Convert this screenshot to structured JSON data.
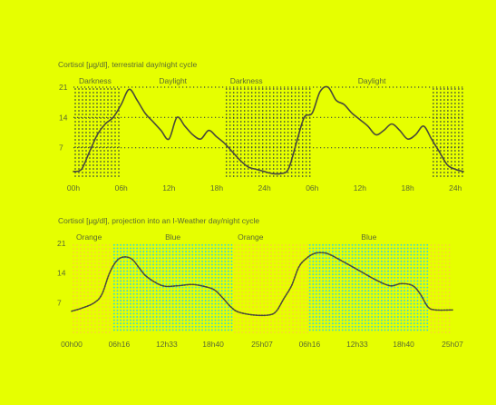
{
  "colors": {
    "background": "#e6ff00",
    "text": "#5a6a32",
    "line": "#4a4a3a",
    "dots_dark": "#3e4a3a",
    "dots_orange": "#ffcf3a",
    "dots_blue": "#3fd9d0"
  },
  "chart_data": [
    {
      "type": "line",
      "title": "Cortisol [µg/dl], terrestrial day/night cycle",
      "xlabel": "",
      "ylabel": "",
      "ylim": [
        0,
        21
      ],
      "xlim": [
        0,
        49
      ],
      "yticks": [
        7,
        14,
        21
      ],
      "xticks": [
        {
          "x": 0,
          "label": "00h"
        },
        {
          "x": 6,
          "label": "06h"
        },
        {
          "x": 12,
          "label": "12h"
        },
        {
          "x": 18,
          "label": "18h"
        },
        {
          "x": 24,
          "label": "24h"
        },
        {
          "x": 30,
          "label": "06h"
        },
        {
          "x": 36,
          "label": "12h"
        },
        {
          "x": 42,
          "label": "18h"
        },
        {
          "x": 48,
          "label": "24h"
        }
      ],
      "bands": [
        {
          "label": "Darkness",
          "start": 0,
          "end": 6,
          "style": "dark"
        },
        {
          "label": "Daylight",
          "start": 6,
          "end": 19,
          "style": "none"
        },
        {
          "label": "Darkness",
          "start": 19,
          "end": 30,
          "style": "dark"
        },
        {
          "label": "Daylight",
          "start": 30,
          "end": 45,
          "style": "none"
        },
        {
          "label": "",
          "start": 45,
          "end": 49,
          "style": "dark"
        }
      ],
      "grid": "horizontal dotted at y ticks",
      "series": [
        {
          "x": [
            0,
            1,
            2,
            3,
            4,
            5,
            6,
            7,
            8,
            9,
            10,
            11,
            12,
            13,
            14,
            15,
            16,
            17,
            18,
            19,
            20,
            21,
            22,
            23,
            24,
            25,
            26,
            27,
            28,
            29,
            30,
            31,
            32,
            33,
            34,
            35,
            36,
            37,
            38,
            39,
            40,
            41,
            42,
            43,
            44,
            45,
            46,
            47,
            48,
            49
          ],
          "y": [
            1.5,
            2,
            6,
            10,
            12.5,
            14,
            17,
            20.5,
            18,
            15,
            13,
            11,
            9,
            14,
            12,
            10,
            9,
            11,
            9.5,
            8,
            6,
            4,
            2.5,
            2,
            1.5,
            1,
            1,
            2,
            8,
            14,
            15,
            20,
            21,
            18,
            17,
            15,
            13.5,
            12,
            10,
            11,
            12.5,
            11,
            9,
            10,
            12,
            9,
            6,
            3,
            2,
            1.5
          ]
        }
      ]
    },
    {
      "type": "line",
      "title": "Cortisol [µg/dl], projection into an I-Weather day/night cycle",
      "xlabel": "",
      "ylabel": "",
      "ylim": [
        0,
        21
      ],
      "xlim": [
        0,
        50.233
      ],
      "yticks": [
        7,
        14,
        21
      ],
      "xticks": [
        {
          "x": 0,
          "label": "00h00"
        },
        {
          "x": 6.267,
          "label": "06h16"
        },
        {
          "x": 12.55,
          "label": "12h33"
        },
        {
          "x": 18.667,
          "label": "18h40"
        },
        {
          "x": 25.117,
          "label": "25h07"
        },
        {
          "x": 31.383,
          "label": "06h16"
        },
        {
          "x": 37.667,
          "label": "12h33"
        },
        {
          "x": 43.783,
          "label": "18h40"
        },
        {
          "x": 50.233,
          "label": "25h07"
        }
      ],
      "bands": [
        {
          "label": "Orange",
          "start": 0,
          "end": 5.4,
          "style": "orange"
        },
        {
          "label": "Blue",
          "start": 5.4,
          "end": 21.3,
          "style": "blue"
        },
        {
          "label": "Orange",
          "start": 21.3,
          "end": 31.2,
          "style": "orange"
        },
        {
          "label": "Blue",
          "start": 31.2,
          "end": 47.2,
          "style": "blue"
        },
        {
          "label": "",
          "start": 47.2,
          "end": 50.233,
          "style": "orange"
        }
      ],
      "grid": "none",
      "series": [
        {
          "x": [
            0,
            1.5,
            3,
            4,
            5,
            6,
            7,
            8,
            9,
            10,
            12,
            14,
            16,
            18,
            19,
            20,
            21,
            22,
            24,
            26,
            27,
            28,
            29,
            30,
            31,
            32,
            33,
            34,
            36,
            38,
            40,
            42,
            43.5,
            45,
            46,
            47,
            48,
            50.233
          ],
          "y": [
            5,
            5.8,
            7,
            9,
            14,
            17,
            17.8,
            17.2,
            15,
            13,
            11,
            11,
            11.3,
            10.6,
            9.8,
            8,
            6,
            4.8,
            4.1,
            4.1,
            5,
            8,
            11,
            15.5,
            17.5,
            18.6,
            18.8,
            18.4,
            16.5,
            14.5,
            12.5,
            11,
            11.5,
            11,
            9,
            6,
            5.3,
            5.3
          ]
        }
      ]
    }
  ]
}
